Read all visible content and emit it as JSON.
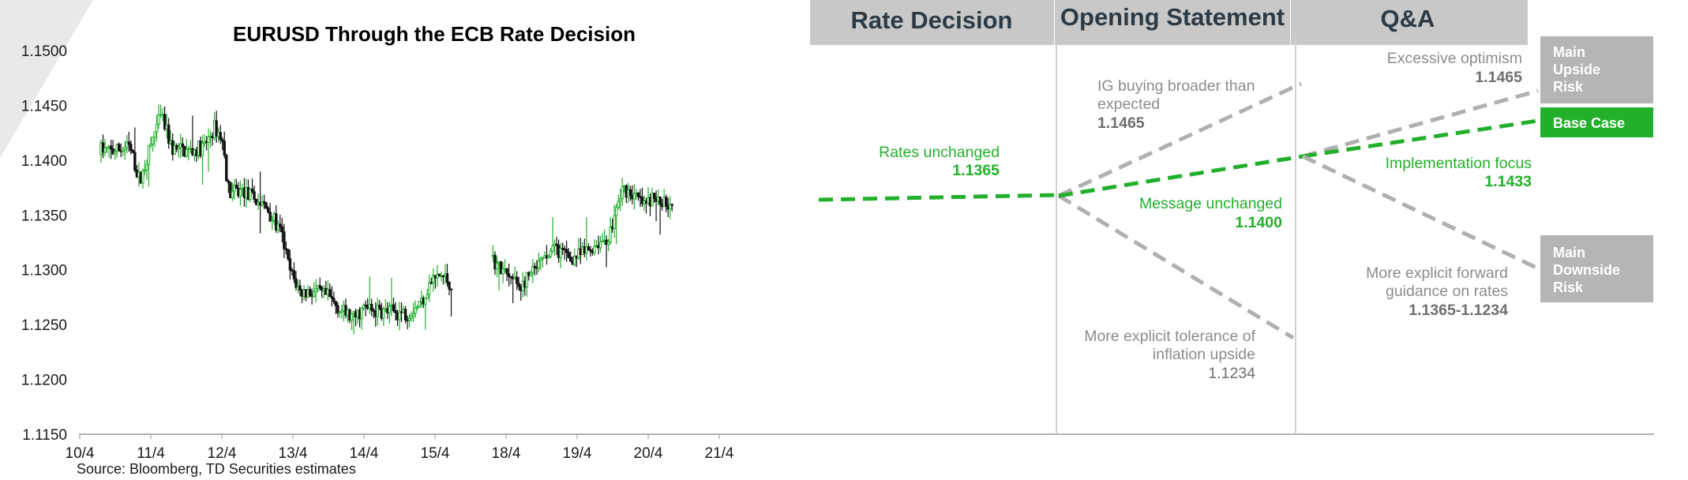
{
  "chart_data": {
    "type": "candlestick",
    "title": "EURUSD Through the ECB Rate Decision",
    "source": "Source: Bloomberg, TD Securities estimates",
    "y_ticks": [
      "1.1500",
      "1.1450",
      "1.1400",
      "1.1350",
      "1.1300",
      "1.1250",
      "1.1200",
      "1.1150"
    ],
    "ylim": [
      1.115,
      1.15
    ],
    "x_ticks": [
      "10/4",
      "11/4",
      "12/4",
      "13/4",
      "14/4",
      "15/4",
      "18/4",
      "19/4",
      "20/4",
      "21/4"
    ],
    "price_path": [
      {
        "x": 0.3,
        "y": 1.141
      },
      {
        "x": 0.45,
        "y": 1.1408
      },
      {
        "x": 0.7,
        "y": 1.1412
      },
      {
        "x": 0.85,
        "y": 1.138
      },
      {
        "x": 1.05,
        "y": 1.1425
      },
      {
        "x": 1.15,
        "y": 1.144
      },
      {
        "x": 1.3,
        "y": 1.141
      },
      {
        "x": 1.55,
        "y": 1.1408
      },
      {
        "x": 1.75,
        "y": 1.1412
      },
      {
        "x": 1.9,
        "y": 1.143
      },
      {
        "x": 2.0,
        "y": 1.142
      },
      {
        "x": 2.1,
        "y": 1.137
      },
      {
        "x": 2.3,
        "y": 1.1372
      },
      {
        "x": 2.45,
        "y": 1.1365
      },
      {
        "x": 2.65,
        "y": 1.1355
      },
      {
        "x": 2.85,
        "y": 1.133
      },
      {
        "x": 2.95,
        "y": 1.13
      },
      {
        "x": 3.1,
        "y": 1.128
      },
      {
        "x": 3.3,
        "y": 1.128
      },
      {
        "x": 3.5,
        "y": 1.1275
      },
      {
        "x": 3.7,
        "y": 1.1262
      },
      {
        "x": 3.85,
        "y": 1.1255
      },
      {
        "x": 4.0,
        "y": 1.1265
      },
      {
        "x": 4.2,
        "y": 1.1262
      },
      {
        "x": 4.4,
        "y": 1.1262
      },
      {
        "x": 4.6,
        "y": 1.126
      },
      {
        "x": 4.8,
        "y": 1.127
      },
      {
        "x": 4.95,
        "y": 1.129
      },
      {
        "x": 5.1,
        "y": 1.1295
      },
      {
        "x": 5.25,
        "y": 1.1285
      },
      {
        "x": 5.8,
        "y": 1.131
      },
      {
        "x": 6.0,
        "y": 1.1295
      },
      {
        "x": 6.2,
        "y": 1.1285
      },
      {
        "x": 6.35,
        "y": 1.1295
      },
      {
        "x": 6.55,
        "y": 1.131
      },
      {
        "x": 6.7,
        "y": 1.132
      },
      {
        "x": 6.9,
        "y": 1.131
      },
      {
        "x": 7.1,
        "y": 1.1315
      },
      {
        "x": 7.3,
        "y": 1.1325
      },
      {
        "x": 7.45,
        "y": 1.133
      },
      {
        "x": 7.55,
        "y": 1.1355
      },
      {
        "x": 7.65,
        "y": 1.1375
      },
      {
        "x": 7.8,
        "y": 1.1368
      },
      {
        "x": 7.95,
        "y": 1.1358
      },
      {
        "x": 8.05,
        "y": 1.1365
      },
      {
        "x": 8.15,
        "y": 1.1362
      },
      {
        "x": 8.35,
        "y": 1.1362
      }
    ]
  },
  "phases": {
    "rate_decision": "Rate Decision",
    "opening_statement": "Opening Statement",
    "qa": "Q&A"
  },
  "scenarios": {
    "rates_unchanged": {
      "label": "Rates unchanged",
      "value": "1.1365"
    },
    "ig_buying": {
      "line1": "IG buying broader than",
      "line2": "expected",
      "value": "1.1465"
    },
    "message_unchanged": {
      "label": "Message unchanged",
      "value": "1.1400"
    },
    "inflation_tolerance": {
      "line1": "More explicit tolerance of",
      "line2": "inflation upside",
      "value": "1.1234"
    },
    "excessive_optimism": {
      "label": "Excessive optimism",
      "value": "1.1465"
    },
    "implementation_focus": {
      "label": "Implementation focus",
      "value": "1.1433"
    },
    "forward_guidance": {
      "line1": "More explicit forward",
      "line2": "guidance on rates",
      "value": "1.1365-1.1234"
    }
  },
  "boxes": {
    "upside": {
      "line1": "Main",
      "line2": "Upside",
      "line3": "Risk"
    },
    "base": "Base Case",
    "downside": {
      "line1": "Main",
      "line2": "Downside",
      "line3": "Risk"
    }
  },
  "colors": {
    "green": "#22b02c",
    "grey_dash": "#b0b0b0",
    "phase_bg": "#c8c8c8",
    "box_grey": "#b5b5b5",
    "candle_up": "#22b02c",
    "candle_down": "#111111"
  }
}
